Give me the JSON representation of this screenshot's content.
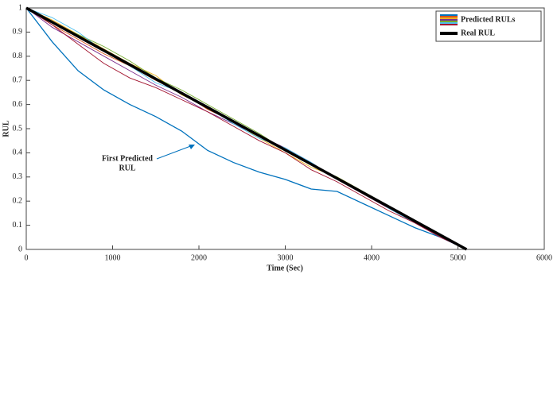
{
  "chart_data": {
    "type": "line",
    "xlabel": "Time (Sec)",
    "ylabel": "RUL",
    "xlim": [
      0,
      6000
    ],
    "xticks": [
      0,
      1000,
      2000,
      3000,
      4000,
      5000,
      6000
    ],
    "ylim": [
      0,
      1
    ],
    "yticks": [
      0,
      0.1,
      0.2,
      0.3,
      0.4,
      0.5,
      0.6,
      0.7,
      0.8,
      0.9,
      1
    ],
    "legend": "top-right",
    "series": [
      {
        "name": "Predicted RULs",
        "colors": [
          "#0072bd",
          "#d95319",
          "#edb120",
          "#7e2f8e",
          "#77ac30",
          "#4dbeee",
          "#a2142f"
        ],
        "x": [
          0,
          300,
          600,
          900,
          1200,
          1500,
          1800,
          2100,
          2400,
          2700,
          3000,
          3300,
          3600,
          3900,
          4200,
          4500,
          4800,
          5100
        ],
        "runs": [
          [
            1,
            0.86,
            0.74,
            0.66,
            0.6,
            0.55,
            0.49,
            0.41,
            0.36,
            0.32,
            0.29,
            0.25,
            0.24,
            0.19,
            0.14,
            0.09,
            0.05,
            0
          ],
          [
            1,
            0.93,
            0.87,
            0.81,
            0.76,
            0.7,
            0.65,
            0.58,
            0.53,
            0.47,
            0.41,
            0.35,
            0.29,
            0.23,
            0.17,
            0.12,
            0.06,
            0
          ],
          [
            1,
            0.95,
            0.89,
            0.83,
            0.77,
            0.72,
            0.64,
            0.59,
            0.53,
            0.46,
            0.4,
            0.34,
            0.3,
            0.24,
            0.18,
            0.12,
            0.06,
            0
          ],
          [
            1,
            0.92,
            0.86,
            0.8,
            0.74,
            0.68,
            0.63,
            0.57,
            0.52,
            0.47,
            0.42,
            0.36,
            0.29,
            0.23,
            0.17,
            0.11,
            0.05,
            0
          ],
          [
            1,
            0.94,
            0.89,
            0.84,
            0.78,
            0.71,
            0.66,
            0.6,
            0.54,
            0.48,
            0.41,
            0.35,
            0.3,
            0.24,
            0.18,
            0.12,
            0.06,
            0
          ],
          [
            1,
            0.96,
            0.9,
            0.82,
            0.76,
            0.69,
            0.65,
            0.59,
            0.52,
            0.46,
            0.42,
            0.36,
            0.29,
            0.24,
            0.17,
            0.11,
            0.06,
            0
          ],
          [
            1,
            0.93,
            0.85,
            0.77,
            0.71,
            0.67,
            0.62,
            0.57,
            0.51,
            0.45,
            0.4,
            0.33,
            0.28,
            0.22,
            0.16,
            0.11,
            0.05,
            0
          ]
        ]
      },
      {
        "name": "Real RUL",
        "color": "#000000",
        "x": [
          0,
          5100
        ],
        "values": [
          1,
          0
        ]
      }
    ],
    "annotation": [
      "First Predicted",
      "RUL"
    ]
  }
}
